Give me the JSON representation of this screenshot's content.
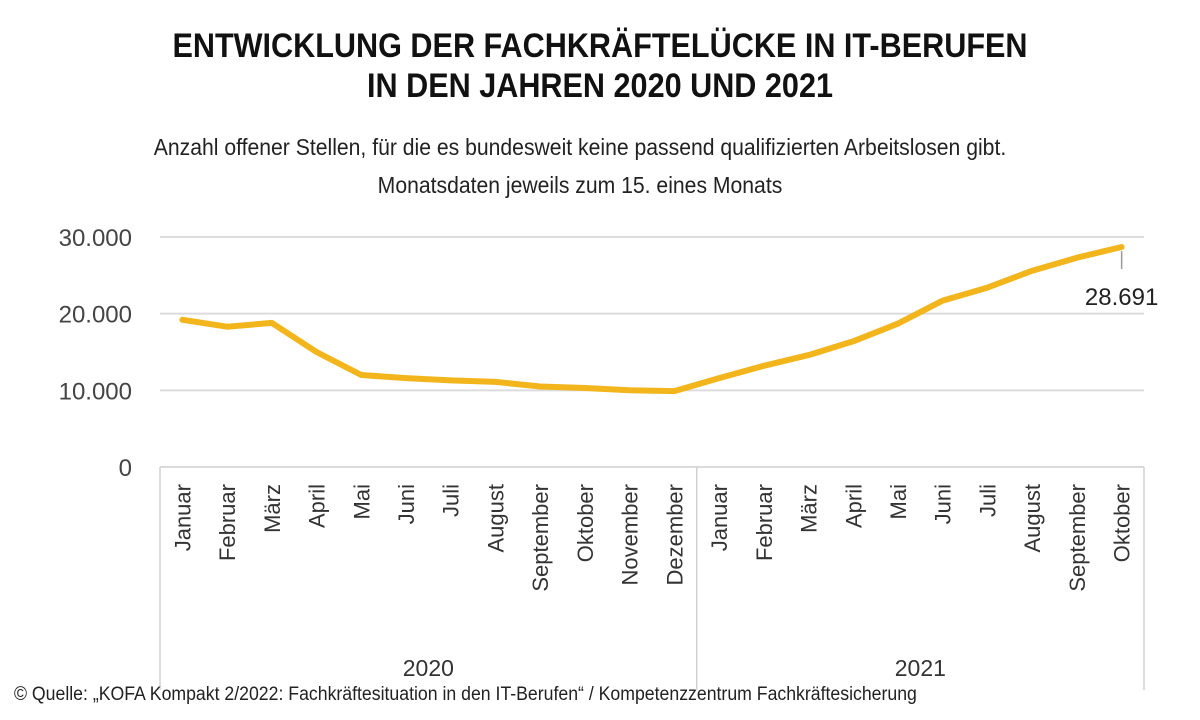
{
  "header": {
    "title_lines": [
      "ENTWICKLUNG DER FACHKRÄFTELÜCKE IN IT-BERUFEN",
      "IN DEN JAHREN 2020 UND 2021"
    ],
    "subtitle_lines": [
      "Anzahl offener Stellen, für die es bundesweit keine passend qualifizierten Arbeitslosen gibt.",
      "Monatsdaten jeweils zum 15. eines Monats"
    ]
  },
  "chart_data": {
    "type": "line",
    "title": "ENTWICKLUNG DER FACHKRÄFTELÜCKE IN IT-BERUFEN IN DEN JAHREN 2020 UND 2021",
    "subtitle": "Anzahl offener Stellen, für die es bundesweit keine passend qualifizierten Arbeitslosen gibt. Monatsdaten jeweils zum 15. eines Monats",
    "xlabel": "",
    "ylabel": "",
    "ylim": [
      0,
      30000
    ],
    "y_ticks": [
      0,
      10000,
      20000,
      30000
    ],
    "y_tick_labels": [
      "0",
      "10.000",
      "20.000",
      "30.000"
    ],
    "grid": "horizontal",
    "legend": "none",
    "line_color": "#F2B51B",
    "categories": [
      "Januar",
      "Februar",
      "März",
      "April",
      "Mai",
      "Juni",
      "Juli",
      "August",
      "September",
      "Oktober",
      "November",
      "Dezember",
      "Januar",
      "Februar",
      "März",
      "April",
      "Mai",
      "Juni",
      "Juli",
      "August",
      "September",
      "Oktober"
    ],
    "groups": [
      {
        "label": "2020",
        "count": 12
      },
      {
        "label": "2021",
        "count": 10
      }
    ],
    "values": [
      19200,
      18300,
      18800,
      15000,
      12000,
      11600,
      11300,
      11100,
      10500,
      10300,
      10000,
      9900,
      11600,
      13200,
      14600,
      16400,
      18700,
      21700,
      23400,
      25600,
      27300,
      28691
    ],
    "annotations": [
      {
        "index": 21,
        "text": "28.691"
      }
    ]
  },
  "footer": {
    "source": "© Quelle: „KOFA Kompakt 2/2022: Fachkräftesituation in den IT-Berufen“ / Kompetenzzentrum Fachkräftesicherung"
  }
}
